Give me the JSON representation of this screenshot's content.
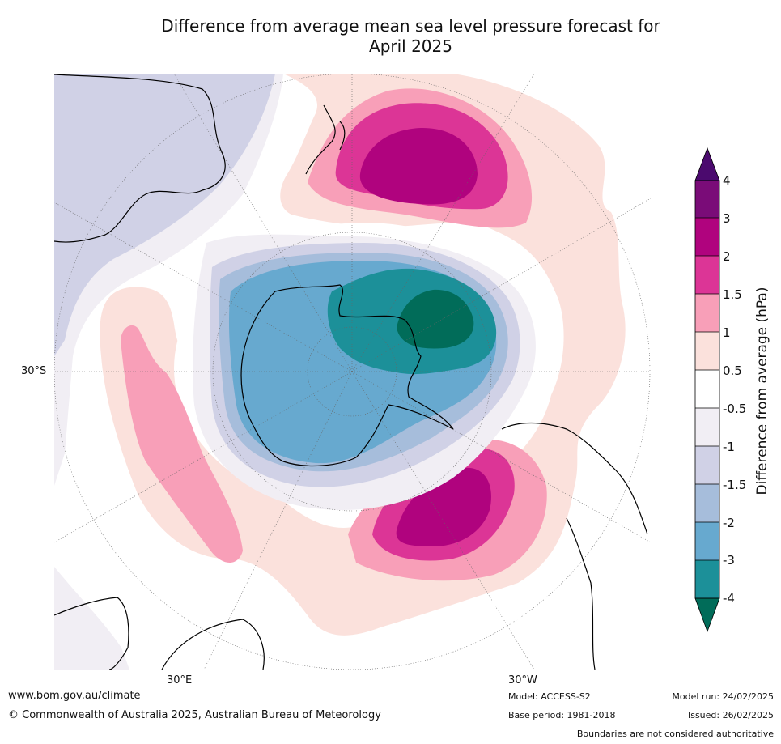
{
  "title": {
    "line1": "Difference from average mean sea level pressure forecast for",
    "line2": "April 2025"
  },
  "map_labels": {
    "lat_left": "30°S",
    "lon_bottom_left": "30°E",
    "lon_bottom_right": "30°W"
  },
  "colorbar": {
    "label": "Difference from average (hPa)",
    "ticks": [
      "4",
      "3",
      "2",
      "1.5",
      "1",
      "0.5",
      "-0.5",
      "-1",
      "-1.5",
      "-2",
      "-3",
      "-4"
    ],
    "colors": {
      "above_4": "#4b0a6e",
      "3_to_4": "#7a0c78",
      "2_to_3": "#b0037e",
      "1.5_to_2": "#dc3596",
      "1_to_1.5": "#f89fb8",
      "0.5_to_1": "#fbe1dc",
      "-0.5_to_0.5": "#ffffff",
      "-1_to_-0.5": "#f1eef4",
      "-1.5_to_-1": "#d0d1e6",
      "-2_to_-1.5": "#a6bddb",
      "-3_to_-2": "#67a9cf",
      "-4_to_-3": "#1c9099",
      "below_-4": "#016c59"
    }
  },
  "footer": {
    "website": "www.bom.gov.au/climate",
    "copyright": "© Commonwealth of Australia 2025, Australian Bureau of Meteorology",
    "model": "Model: ACCESS-S2",
    "base_period": "Base period: 1981-2018",
    "model_run": "Model run: 24/02/2025",
    "issued": "Issued: 26/02/2025",
    "disclaimer": "Boundaries are not considered authoritative"
  }
}
